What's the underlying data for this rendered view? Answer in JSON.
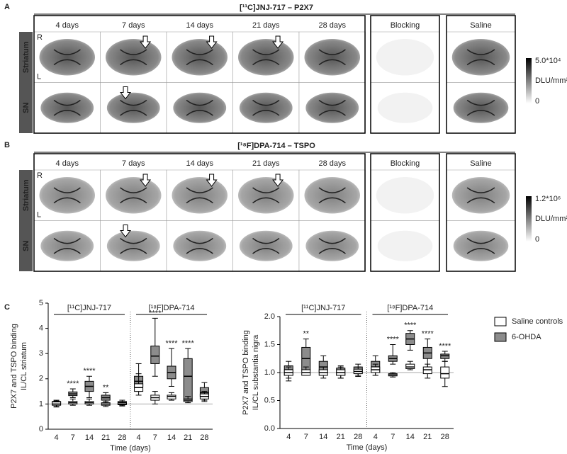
{
  "panels": [
    {
      "letter": "A",
      "title": "[¹¹C]JNJ-717 – P2X7",
      "columns": [
        "4 days",
        "7 days",
        "14 days",
        "21 days",
        "28 days",
        "Blocking",
        "Saline"
      ],
      "rows": [
        "Striatum",
        "SN"
      ],
      "orientation": [
        "R",
        "L"
      ],
      "colorbar": {
        "max": "5.0*10⁴",
        "unit": "DLU/mm²",
        "min": "0"
      }
    },
    {
      "letter": "B",
      "title": "[¹⁸F]DPA-714 – TSPO",
      "columns": [
        "4 days",
        "7 days",
        "14 days",
        "21 days",
        "28 days",
        "Blocking",
        "Saline"
      ],
      "rows": [
        "Striatum",
        "SN"
      ],
      "orientation": [
        "R",
        "L"
      ],
      "colorbar": {
        "max": "1.2*10⁶",
        "unit": "DLU/mm²",
        "min": "0"
      }
    }
  ],
  "panel_c_letter": "C",
  "chart_data": [
    {
      "type": "box",
      "y_label": [
        "P2X7 and TSPO binding",
        "IL/CL striatum"
      ],
      "x_label": "Time (days)",
      "ylim": [
        0,
        5
      ],
      "yticks": [
        0,
        1,
        2,
        3,
        4,
        5
      ],
      "reference_line": 1,
      "groups": [
        {
          "label": "[¹¹C]JNJ-717",
          "categories": [
            "4",
            "7",
            "14",
            "21",
            "28"
          ]
        },
        {
          "label": "[¹⁸F]DPA-714",
          "categories": [
            "4",
            "7",
            "14",
            "21",
            "28"
          ]
        }
      ],
      "series": [
        {
          "name": "6-OHDA",
          "color": "#8c8c8c",
          "significance": [
            [
              null,
              "****",
              "****",
              "**",
              null
            ],
            [
              null,
              "****",
              "****",
              "****",
              null
            ]
          ],
          "values": [
            [
              {
                "min": 0.9,
                "q1": 0.98,
                "median": 1.05,
                "q3": 1.1,
                "max": 1.15
              },
              {
                "min": 1.25,
                "q1": 1.33,
                "median": 1.4,
                "q3": 1.48,
                "max": 1.6
              },
              {
                "min": 1.25,
                "q1": 1.5,
                "median": 1.7,
                "q3": 1.9,
                "max": 2.1
              },
              {
                "min": 1.05,
                "q1": 1.15,
                "median": 1.25,
                "q3": 1.35,
                "max": 1.45
              },
              {
                "min": 0.95,
                "q1": 1.0,
                "median": 1.05,
                "q3": 1.1,
                "max": 1.15
              }
            ],
            [
              {
                "min": 1.5,
                "q1": 1.7,
                "median": 1.9,
                "q3": 2.1,
                "max": 2.6
              },
              {
                "min": 2.1,
                "q1": 2.6,
                "median": 2.9,
                "q3": 3.3,
                "max": 4.4
              },
              {
                "min": 1.7,
                "q1": 2.0,
                "median": 2.25,
                "q3": 2.5,
                "max": 3.2
              },
              {
                "min": 1.1,
                "q1": 1.2,
                "median": 2.1,
                "q3": 2.8,
                "max": 3.2
              },
              {
                "min": 1.15,
                "q1": 1.3,
                "median": 1.45,
                "q3": 1.65,
                "max": 1.85
              }
            ]
          ]
        },
        {
          "name": "Saline controls",
          "color": "#ffffff",
          "values": [
            [
              {
                "min": 0.88,
                "q1": 0.95,
                "median": 1.0,
                "q3": 1.08,
                "max": 1.12
              },
              {
                "min": 0.95,
                "q1": 1.0,
                "median": 1.05,
                "q3": 1.1,
                "max": 1.2
              },
              {
                "min": 0.95,
                "q1": 1.0,
                "median": 1.05,
                "q3": 1.1,
                "max": 1.2
              },
              {
                "min": 0.9,
                "q1": 0.95,
                "median": 1.0,
                "q3": 1.05,
                "max": 1.1
              },
              {
                "min": 0.92,
                "q1": 0.97,
                "median": 1.0,
                "q3": 1.05,
                "max": 1.1
              }
            ],
            [
              {
                "min": 1.35,
                "q1": 1.5,
                "median": 1.65,
                "q3": 1.8,
                "max": 2.2
              },
              {
                "min": 1.0,
                "q1": 1.15,
                "median": 1.25,
                "q3": 1.35,
                "max": 1.5
              },
              {
                "min": 1.15,
                "q1": 1.2,
                "median": 1.3,
                "q3": 1.35,
                "max": 1.45
              },
              {
                "min": 1.05,
                "q1": 1.1,
                "median": 1.15,
                "q3": 1.2,
                "max": 1.3
              },
              {
                "min": 1.1,
                "q1": 1.2,
                "median": 1.3,
                "q3": 1.4,
                "max": 1.5
              }
            ]
          ]
        }
      ]
    },
    {
      "type": "box",
      "y_label": [
        "P2X7 and TSPO binding",
        "IL/CL substantia nigra"
      ],
      "x_label": "Time (days)",
      "ylim": [
        0,
        2
      ],
      "yticks": [
        {
          "value": 0,
          "label": "0.0"
        },
        0.5,
        {
          "value": 1,
          "label": "1.0"
        },
        1.5,
        {
          "value": 2,
          "label": "2.0"
        }
      ],
      "reference_line": 1,
      "legend": "right",
      "groups": [
        {
          "label": "[¹¹C]JNJ-717",
          "categories": [
            "4",
            "7",
            "14",
            "21",
            "28"
          ]
        },
        {
          "label": "[¹⁸F]DPA-714",
          "categories": [
            "4",
            "7",
            "14",
            "21",
            "28"
          ]
        }
      ],
      "series": [
        {
          "name": "6-OHDA",
          "color": "#8c8c8c",
          "significance": [
            [
              null,
              "**",
              null,
              null,
              null
            ],
            [
              null,
              "****",
              "****",
              "****",
              "****"
            ]
          ],
          "values": [
            [
              {
                "min": 0.85,
                "q1": 0.95,
                "median": 1.05,
                "q3": 1.12,
                "max": 1.2
              },
              {
                "min": 0.95,
                "q1": 1.05,
                "median": 1.25,
                "q3": 1.45,
                "max": 1.6
              },
              {
                "min": 0.95,
                "q1": 1.0,
                "median": 1.1,
                "q3": 1.2,
                "max": 1.3
              },
              {
                "min": 0.9,
                "q1": 0.95,
                "median": 1.0,
                "q3": 1.08,
                "max": 1.12
              },
              {
                "min": 0.95,
                "q1": 1.0,
                "median": 1.05,
                "q3": 1.1,
                "max": 1.15
              }
            ],
            [
              {
                "min": 0.95,
                "q1": 1.0,
                "median": 1.1,
                "q3": 1.2,
                "max": 1.3
              },
              {
                "min": 1.15,
                "q1": 1.2,
                "median": 1.25,
                "q3": 1.3,
                "max": 1.5
              },
              {
                "min": 1.4,
                "q1": 1.5,
                "median": 1.6,
                "q3": 1.7,
                "max": 1.75
              },
              {
                "min": 1.1,
                "q1": 1.25,
                "median": 1.35,
                "q3": 1.45,
                "max": 1.6
              },
              {
                "min": 1.2,
                "q1": 1.25,
                "median": 1.3,
                "q3": 1.33,
                "max": 1.38
              }
            ]
          ]
        },
        {
          "name": "Saline controls",
          "color": "#ffffff",
          "values": [
            [
              {
                "min": 0.9,
                "q1": 0.95,
                "median": 1.0,
                "q3": 1.05,
                "max": 1.1
              },
              {
                "min": 0.95,
                "q1": 0.95,
                "median": 1.0,
                "q3": 1.05,
                "max": 1.1
              },
              {
                "min": 0.9,
                "q1": 0.95,
                "median": 1.0,
                "q3": 1.05,
                "max": 1.1
              },
              {
                "min": 0.9,
                "q1": 0.95,
                "median": 1.0,
                "q3": 1.05,
                "max": 1.1
              },
              {
                "min": 0.93,
                "q1": 0.98,
                "median": 1.02,
                "q3": 1.06,
                "max": 1.1
              }
            ],
            [
              {
                "min": 0.95,
                "q1": 1.0,
                "median": 1.05,
                "q3": 1.1,
                "max": 1.15
              },
              {
                "min": 0.92,
                "q1": 0.94,
                "median": 0.96,
                "q3": 0.98,
                "max": 1.0
              },
              {
                "min": 1.05,
                "q1": 1.07,
                "median": 1.1,
                "q3": 1.15,
                "max": 1.2
              },
              {
                "min": 0.9,
                "q1": 0.98,
                "median": 1.05,
                "q3": 1.1,
                "max": 1.15
              },
              {
                "min": 0.75,
                "q1": 0.9,
                "median": 0.98,
                "q3": 1.1,
                "max": 1.2
              }
            ]
          ]
        }
      ]
    }
  ]
}
